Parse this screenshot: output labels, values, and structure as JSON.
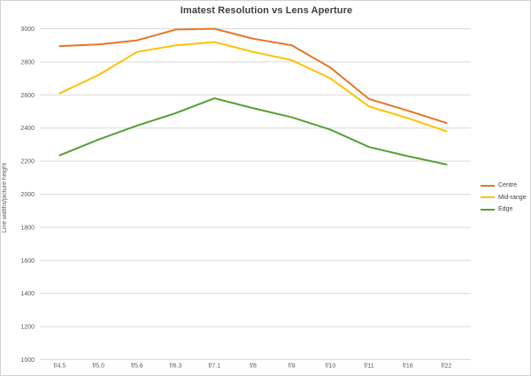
{
  "chart_data": {
    "type": "line",
    "title": "Imatest Resolution vs Lens Aperture",
    "xlabel": "",
    "ylabel": "Line widths/picture height",
    "categories": [
      "f/4.5",
      "f/5.0",
      "f/5.6",
      "f/6.3",
      "f/7.1",
      "f/8",
      "f/9",
      "f/10",
      "f/11",
      "f/16",
      "f/22"
    ],
    "series": [
      {
        "name": "Centre",
        "color": "#E87424",
        "values": [
          2895,
          2905,
          2930,
          2995,
          3000,
          2940,
          2900,
          2765,
          2575,
          2505,
          2430
        ]
      },
      {
        "name": "Mid-range",
        "color": "#FFC000",
        "values": [
          2610,
          2720,
          2860,
          2900,
          2920,
          2860,
          2810,
          2700,
          2530,
          2460,
          2380
        ]
      },
      {
        "name": "Edge",
        "color": "#56A033",
        "values": [
          2235,
          2330,
          2415,
          2490,
          2580,
          2520,
          2465,
          2390,
          2285,
          2230,
          2180
        ]
      }
    ],
    "ylim": [
      1000,
      3000
    ],
    "ytick_step": 200,
    "yticks": [
      3000,
      2800,
      2600,
      2400,
      2200,
      2000,
      1800,
      1600,
      1400,
      1200,
      1000
    ],
    "grid": true,
    "legend_position": "right"
  },
  "colors": {
    "background": "#FFFFFF",
    "border": "#D3D3D3",
    "gridline": "#D9D9D9",
    "axis_text": "#595959",
    "title_text": "#404040"
  }
}
